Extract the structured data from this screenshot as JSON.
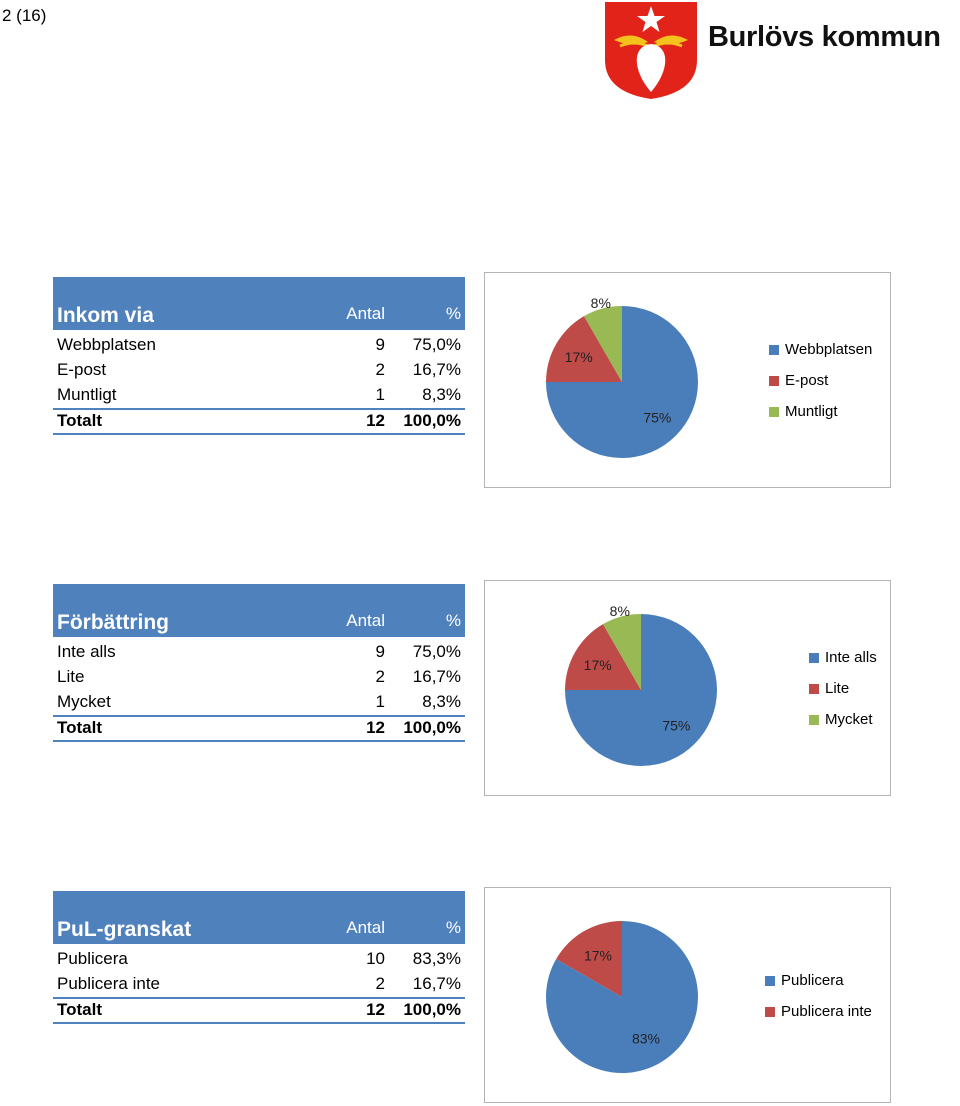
{
  "page_number": "2 (16)",
  "organization": "Burlövs kommun",
  "colors": {
    "header": "#4f81bd",
    "blue": "#4a7ebb",
    "red": "#be4b48",
    "green": "#98b954"
  },
  "tables": [
    {
      "title": "Inkom via",
      "col_count": "Antal",
      "col_pct": "%",
      "rows": [
        {
          "label": "Webbplatsen",
          "count": "9",
          "pct": "75,0%"
        },
        {
          "label": "E-post",
          "count": "2",
          "pct": "16,7%"
        },
        {
          "label": "Muntligt",
          "count": "1",
          "pct": "8,3%"
        }
      ],
      "total": {
        "label": "Totalt",
        "count": "12",
        "pct": "100,0%"
      }
    },
    {
      "title": "Förbättring",
      "col_count": "Antal",
      "col_pct": "%",
      "rows": [
        {
          "label": "Inte alls",
          "count": "9",
          "pct": "75,0%"
        },
        {
          "label": "Lite",
          "count": "2",
          "pct": "16,7%"
        },
        {
          "label": "Mycket",
          "count": "1",
          "pct": "8,3%"
        }
      ],
      "total": {
        "label": "Totalt",
        "count": "12",
        "pct": "100,0%"
      }
    },
    {
      "title": "PuL-granskat",
      "col_count": "Antal",
      "col_pct": "%",
      "rows": [
        {
          "label": "Publicera",
          "count": "10",
          "pct": "83,3%"
        },
        {
          "label": "Publicera inte",
          "count": "2",
          "pct": "16,7%"
        }
      ],
      "total": {
        "label": "Totalt",
        "count": "12",
        "pct": "100,0%"
      }
    }
  ],
  "chart_data": [
    {
      "type": "pie",
      "categories": [
        "Webbplatsen",
        "E-post",
        "Muntligt"
      ],
      "values": [
        9,
        2,
        1
      ],
      "labels": [
        "75%",
        "17%",
        "8%"
      ],
      "colors": [
        "#4a7ebb",
        "#be4b48",
        "#98b954"
      ],
      "legend": "right"
    },
    {
      "type": "pie",
      "categories": [
        "Inte alls",
        "Lite",
        "Mycket"
      ],
      "values": [
        9,
        2,
        1
      ],
      "labels": [
        "75%",
        "17%",
        "8%"
      ],
      "colors": [
        "#4a7ebb",
        "#be4b48",
        "#98b954"
      ],
      "legend": "right"
    },
    {
      "type": "pie",
      "categories": [
        "Publicera",
        "Publicera inte"
      ],
      "values": [
        10,
        2
      ],
      "labels": [
        "83%",
        "17%"
      ],
      "colors": [
        "#4a7ebb",
        "#be4b48"
      ],
      "legend": "right"
    }
  ]
}
